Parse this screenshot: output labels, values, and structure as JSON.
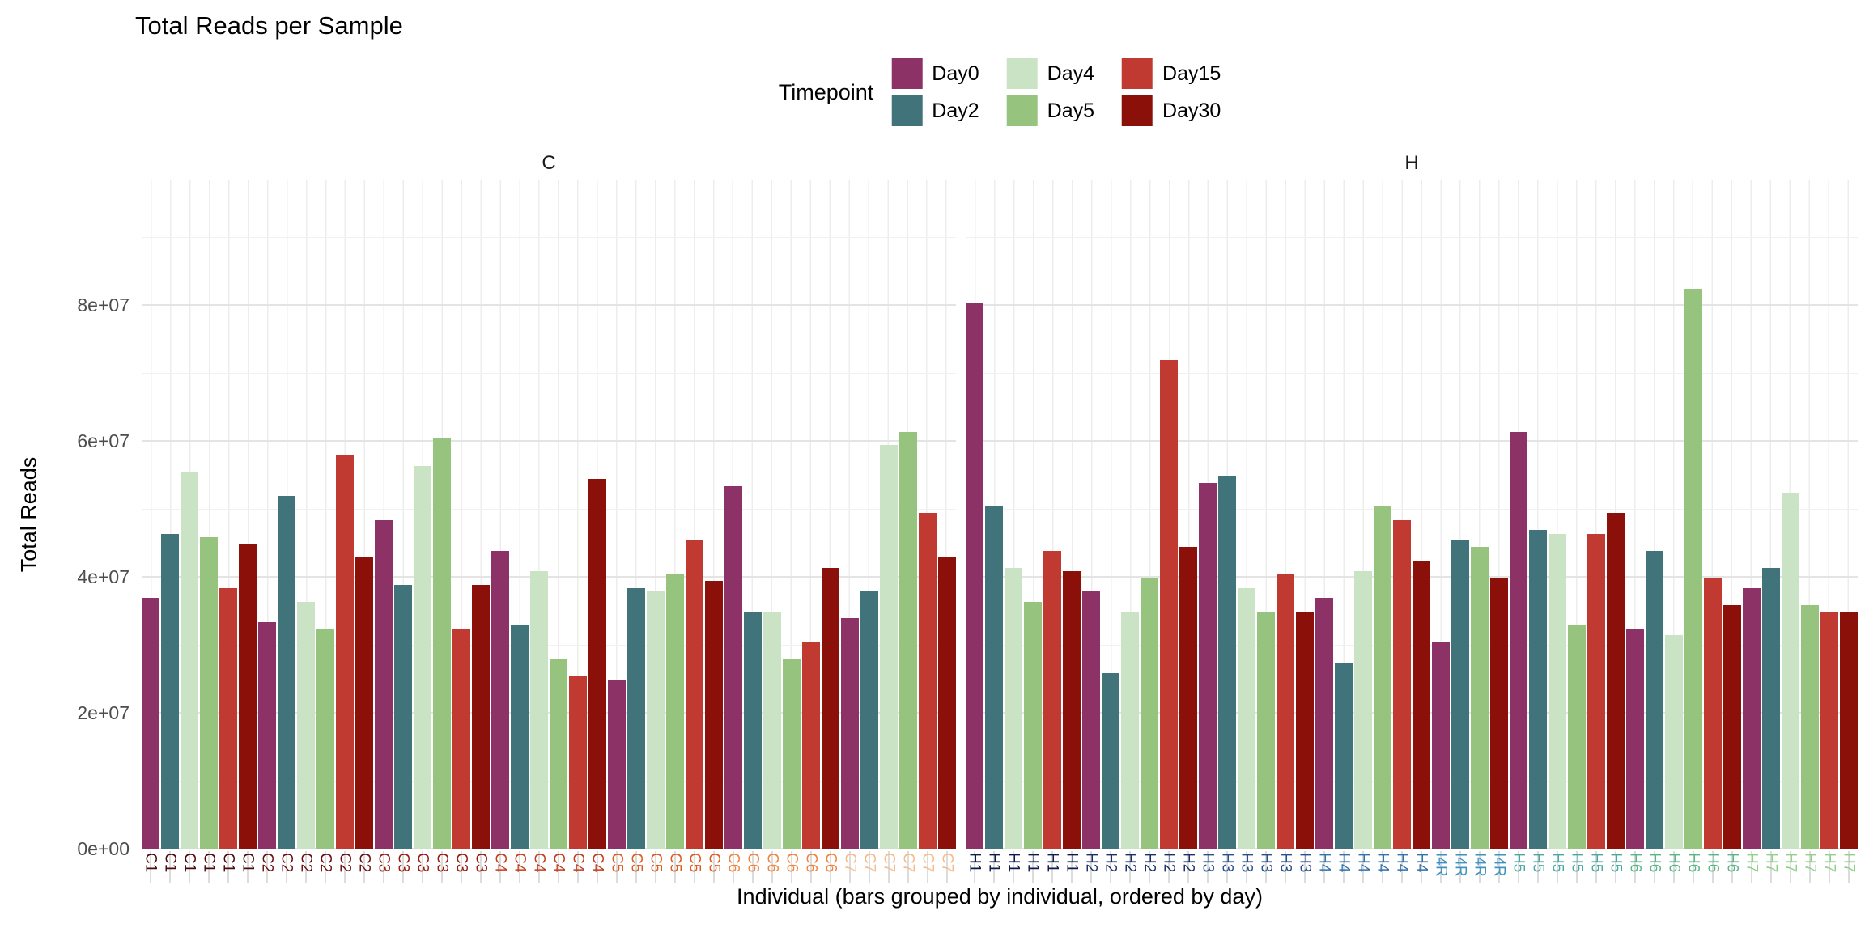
{
  "chart_data": {
    "type": "bar",
    "title": "Total Reads per Sample",
    "xlabel": "Individual (bars grouped by individual, ordered by day)",
    "ylabel": "Total Reads",
    "legend_title": "Timepoint",
    "legend_position": "top-center",
    "grid": "on",
    "ylim": [
      0,
      98600000
    ],
    "y_ticks": [
      {
        "label": "0e+00",
        "value": 0
      },
      {
        "label": "2e+07",
        "value": 20000000
      },
      {
        "label": "4e+07",
        "value": 40000000
      },
      {
        "label": "6e+07",
        "value": 60000000
      },
      {
        "label": "8e+07",
        "value": 80000000
      }
    ],
    "y_minor_ticks": [
      10000000,
      30000000,
      50000000,
      70000000,
      90000000
    ],
    "timepoints": [
      {
        "name": "Day0",
        "color": "#8C3266"
      },
      {
        "name": "Day2",
        "color": "#40737A"
      },
      {
        "name": "Day4",
        "color": "#CBE3C5"
      },
      {
        "name": "Day5",
        "color": "#96C47F"
      },
      {
        "name": "Day15",
        "color": "#C03A32"
      },
      {
        "name": "Day30",
        "color": "#8B1009"
      }
    ],
    "facets": [
      {
        "label": "C",
        "individuals": [
          {
            "id": "C1",
            "label_color": "#4b090e",
            "samples": [
              [
                "Day0",
                37000000
              ],
              [
                "Day2",
                46500000
              ],
              [
                "Day4",
                55500000
              ],
              [
                "Day5",
                46000000
              ],
              [
                "Day15",
                38500000
              ],
              [
                "Day30",
                45000000
              ]
            ]
          },
          {
            "id": "C2",
            "label_color": "#6d0d12",
            "samples": [
              [
                "Day0",
                33500000
              ],
              [
                "Day2",
                52000000
              ],
              [
                "Day4",
                36500000
              ],
              [
                "Day5",
                32500000
              ],
              [
                "Day15",
                58000000
              ],
              [
                "Day30",
                43000000
              ]
            ]
          },
          {
            "id": "C3",
            "label_color": "#9a1a10",
            "samples": [
              [
                "Day0",
                48500000
              ],
              [
                "Day2",
                39000000
              ],
              [
                "Day4",
                56500000
              ],
              [
                "Day5",
                60500000
              ],
              [
                "Day15",
                32500000
              ],
              [
                "Day30",
                39000000
              ]
            ]
          },
          {
            "id": "C4",
            "label_color": "#c43d1c",
            "samples": [
              [
                "Day0",
                44000000
              ],
              [
                "Day2",
                33000000
              ],
              [
                "Day4",
                41000000
              ],
              [
                "Day5",
                28000000
              ],
              [
                "Day15",
                25500000
              ],
              [
                "Day30",
                54500000
              ]
            ]
          },
          {
            "id": "C5",
            "label_color": "#e05a20",
            "samples": [
              [
                "Day0",
                25000000
              ],
              [
                "Day2",
                38500000
              ],
              [
                "Day4",
                38000000
              ],
              [
                "Day5",
                40500000
              ],
              [
                "Day15",
                45500000
              ],
              [
                "Day30",
                39500000
              ]
            ]
          },
          {
            "id": "C6",
            "label_color": "#ef8440",
            "samples": [
              [
                "Day0",
                53500000
              ],
              [
                "Day2",
                35000000
              ],
              [
                "Day4",
                35000000
              ],
              [
                "Day5",
                28000000
              ],
              [
                "Day15",
                30500000
              ],
              [
                "Day30",
                41500000
              ]
            ]
          },
          {
            "id": "C7",
            "label_color": "#f6bb8a",
            "samples": [
              [
                "Day0",
                34000000
              ],
              [
                "Day2",
                38000000
              ],
              [
                "Day4",
                59500000
              ],
              [
                "Day5",
                61500000
              ],
              [
                "Day15",
                49500000
              ],
              [
                "Day30",
                43000000
              ]
            ]
          }
        ]
      },
      {
        "label": "H",
        "individuals": [
          {
            "id": "H1",
            "label_color": "#0f1b4d",
            "samples": [
              [
                "Day0",
                80500000
              ],
              [
                "Day2",
                50500000
              ],
              [
                "Day4",
                41500000
              ],
              [
                "Day5",
                36500000
              ],
              [
                "Day15",
                44000000
              ],
              [
                "Day30",
                41000000
              ]
            ]
          },
          {
            "id": "H2",
            "label_color": "#1b2e67",
            "samples": [
              [
                "Day0",
                38000000
              ],
              [
                "Day2",
                26000000
              ],
              [
                "Day4",
                35000000
              ],
              [
                "Day5",
                40000000
              ],
              [
                "Day15",
                72000000
              ],
              [
                "Day30",
                44500000
              ]
            ]
          },
          {
            "id": "H3",
            "label_color": "#27508d",
            "samples": [
              [
                "Day0",
                54000000
              ],
              [
                "Day2",
                55000000
              ],
              [
                "Day4",
                38500000
              ],
              [
                "Day5",
                35000000
              ],
              [
                "Day15",
                40500000
              ],
              [
                "Day30",
                35000000
              ]
            ]
          },
          {
            "id": "H4",
            "label_color": "#3273ac",
            "samples": [
              [
                "Day0",
                37000000
              ],
              [
                "Day2",
                27500000
              ],
              [
                "Day4",
                41000000
              ],
              [
                "Day5",
                50500000
              ],
              [
                "Day15",
                48500000
              ],
              [
                "Day30",
                42500000
              ]
            ]
          },
          {
            "id": "I4R",
            "label_color": "#3f93c1",
            "samples": [
              [
                "Day0",
                30500000
              ],
              [
                "Day2",
                45500000
              ],
              [
                "Day5",
                44500000
              ],
              [
                "Day30",
                40000000
              ]
            ]
          },
          {
            "id": "H5",
            "label_color": "#4aa8a3",
            "samples": [
              [
                "Day0",
                61500000
              ],
              [
                "Day2",
                47000000
              ],
              [
                "Day4",
                46500000
              ],
              [
                "Day5",
                33000000
              ],
              [
                "Day15",
                46500000
              ],
              [
                "Day30",
                49500000
              ]
            ]
          },
          {
            "id": "H6",
            "label_color": "#57b586",
            "samples": [
              [
                "Day0",
                32500000
              ],
              [
                "Day2",
                44000000
              ],
              [
                "Day4",
                31500000
              ],
              [
                "Day5",
                82500000
              ],
              [
                "Day15",
                40000000
              ],
              [
                "Day30",
                36000000
              ]
            ]
          },
          {
            "id": "H7",
            "label_color": "#90d089",
            "samples": [
              [
                "Day0",
                38500000
              ],
              [
                "Day2",
                41500000
              ],
              [
                "Day4",
                52500000
              ],
              [
                "Day5",
                36000000
              ],
              [
                "Day15",
                35000000
              ],
              [
                "Day30",
                35000000
              ]
            ]
          }
        ]
      }
    ]
  }
}
